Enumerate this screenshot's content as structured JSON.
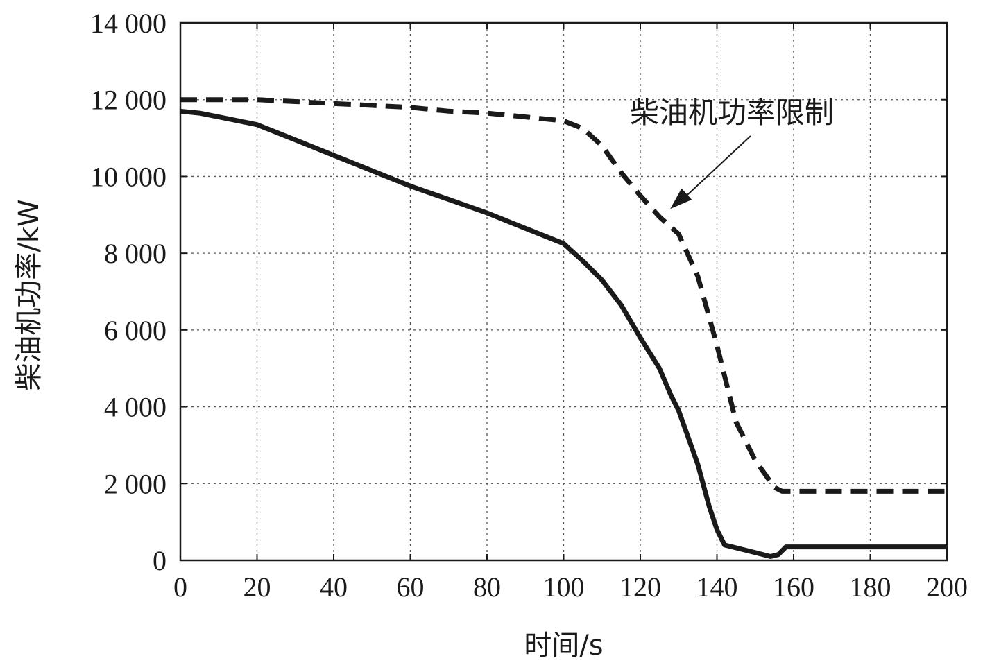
{
  "chart_data": {
    "type": "line",
    "title": "",
    "xlabel": "时间/s",
    "ylabel": "柴油机功率/kW",
    "xlim": [
      0,
      200
    ],
    "ylim": [
      0,
      14000
    ],
    "x_ticks": [
      0,
      20,
      40,
      60,
      80,
      100,
      120,
      140,
      160,
      180,
      200
    ],
    "x_tick_labels": [
      "0",
      "20",
      "40",
      "60",
      "80",
      "100",
      "120",
      "140",
      "160",
      "180",
      "200"
    ],
    "y_ticks": [
      0,
      2000,
      4000,
      6000,
      8000,
      10000,
      12000,
      14000
    ],
    "y_tick_labels": [
      "0",
      "2 000",
      "4 000",
      "6 000",
      "8 000",
      "10 000",
      "12 000",
      "14 000"
    ],
    "grid": true,
    "series": [
      {
        "name": "柴油机功率限制",
        "style": "dashed",
        "color": "#1a1a1a",
        "x": [
          0,
          10,
          20,
          30,
          40,
          50,
          60,
          70,
          80,
          90,
          100,
          105,
          110,
          115,
          120,
          125,
          130,
          135,
          140,
          145,
          150,
          155,
          157,
          160,
          170,
          180,
          190,
          200
        ],
        "y": [
          12000,
          12000,
          12000,
          11950,
          11900,
          11850,
          11800,
          11700,
          11650,
          11550,
          11450,
          11250,
          10800,
          10100,
          9500,
          8950,
          8500,
          7400,
          5600,
          3600,
          2600,
          1900,
          1800,
          1800,
          1800,
          1800,
          1800,
          1800
        ]
      },
      {
        "name": "",
        "style": "solid",
        "color": "#1a1a1a",
        "x": [
          0,
          5,
          10,
          20,
          30,
          40,
          50,
          60,
          70,
          80,
          90,
          100,
          105,
          110,
          115,
          120,
          125,
          128,
          130,
          135,
          138,
          140,
          142,
          144,
          150,
          154,
          156,
          158,
          160,
          170,
          180,
          190,
          200
        ],
        "y": [
          11700,
          11650,
          11550,
          11350,
          10950,
          10550,
          10150,
          9750,
          9400,
          9050,
          8650,
          8250,
          7800,
          7300,
          6650,
          5800,
          5000,
          4300,
          3900,
          2500,
          1400,
          800,
          400,
          350,
          200,
          100,
          150,
          350,
          350,
          350,
          350,
          350,
          350
        ]
      }
    ],
    "annotations": [
      {
        "text": "柴油机功率限制",
        "target_x": 126,
        "target_y": 9100
      }
    ]
  }
}
